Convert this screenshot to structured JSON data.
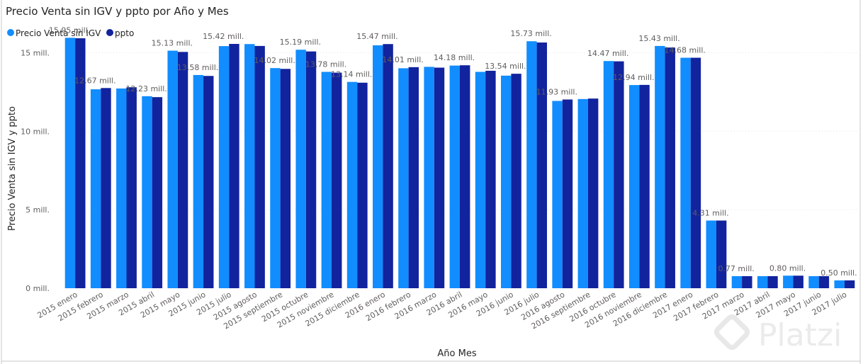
{
  "chart_data": {
    "type": "bar",
    "title": "Precio Venta sin IGV y ppto por Año y Mes",
    "xlabel": "Año Mes",
    "ylabel": "Precio Venta sin IGV y ppto",
    "ylim": [
      0,
      17.5
    ],
    "yticks": [
      {
        "value": 0,
        "label": "0 mill."
      },
      {
        "value": 5,
        "label": "5 mill."
      },
      {
        "value": 10,
        "label": "10 mill."
      },
      {
        "value": 15,
        "label": "15 mill."
      }
    ],
    "grid": true,
    "legend_position": "top-left",
    "categories": [
      "2015 enero",
      "2015 febrero",
      "2015 marzo",
      "2015 abril",
      "2015 mayo",
      "2015 junio",
      "2015 julio",
      "2015 agosto",
      "2015 septiembre",
      "2015 octubre",
      "2015 noviembre",
      "2015 diciembre",
      "2016 enero",
      "2016 febrero",
      "2016 marzo",
      "2016 abril",
      "2016 mayo",
      "2016 junio",
      "2016 julio",
      "2016 agosto",
      "2016 septiembre",
      "2016 octubre",
      "2016 noviembre",
      "2016 diciembre",
      "2017 enero",
      "2017 febrero",
      "2017 marzo",
      "2017 abril",
      "2017 mayo",
      "2017 junio",
      "2017 julio"
    ],
    "series": [
      {
        "name": "Precio Venta sin IGV",
        "color": "#118DFF",
        "values": [
          15.95,
          12.67,
          12.72,
          12.23,
          15.13,
          13.58,
          15.42,
          15.55,
          14.02,
          15.19,
          13.78,
          13.14,
          15.47,
          14.01,
          14.1,
          14.18,
          13.78,
          13.54,
          15.73,
          11.93,
          12.05,
          14.47,
          12.94,
          15.43,
          14.68,
          4.31,
          0.77,
          0.77,
          0.8,
          0.77,
          0.5
        ],
        "labels": [
          "15.95 mill.",
          "12.67 mill.",
          "",
          "12.23 mill.",
          "15.13 mill.",
          "13.58 mill.",
          "15.42 mill.",
          "",
          "14.02 mill.",
          "15.19 mill.",
          "13.78 mill.",
          "13.14 mill.",
          "15.47 mill.",
          "14.01 mill.",
          "",
          "14.18 mill.",
          "",
          "13.54 mill.",
          "15.73 mill.",
          "11.93 mill.",
          "",
          "14.47 mill.",
          "12.94 mill.",
          "15.43 mill.",
          "14.68 mill.",
          "4.31 mill.",
          "0.77 mill.",
          "",
          "0.80 mill.",
          "",
          "0.50 mill."
        ]
      },
      {
        "name": "ppto",
        "color": "#12239E",
        "values": [
          15.92,
          12.75,
          12.8,
          12.17,
          15.05,
          13.52,
          15.56,
          15.43,
          13.97,
          15.08,
          13.73,
          13.09,
          15.55,
          14.08,
          14.05,
          14.2,
          13.85,
          13.66,
          15.65,
          12.02,
          12.08,
          14.45,
          12.95,
          15.33,
          14.68,
          4.31,
          0.77,
          0.77,
          0.8,
          0.77,
          0.5
        ]
      }
    ]
  },
  "watermark": "Platzi"
}
